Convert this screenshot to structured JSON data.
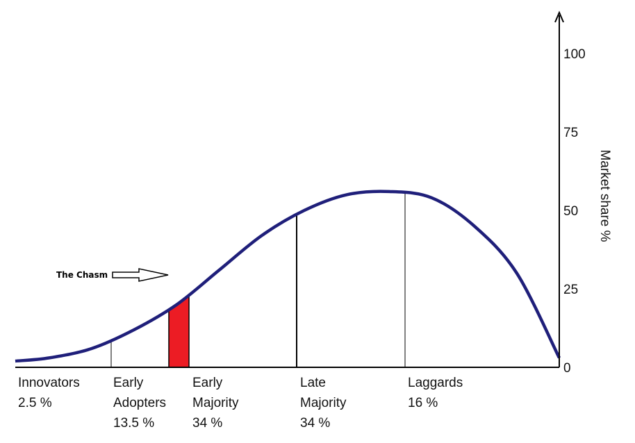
{
  "chart_data": {
    "type": "line",
    "title": "",
    "ylabel": "Market share %",
    "xlabel": "",
    "ylim": [
      0,
      100
    ],
    "yticks": [
      0,
      25,
      50,
      75,
      100
    ],
    "grid": false,
    "curve": {
      "x": [
        -3.4,
        -3.0,
        -2.5,
        -2.0,
        -1.5,
        -1.0,
        -0.5,
        0.0,
        0.5,
        1.0,
        1.5,
        2.0,
        2.5,
        3.0
      ],
      "y": [
        2,
        3,
        6,
        12,
        20,
        31,
        42,
        50,
        55,
        56,
        54,
        45,
        30,
        3
      ]
    },
    "segments": [
      {
        "id": "innovators",
        "lines": [
          "Innovators",
          "2.5 %"
        ]
      },
      {
        "id": "early-adopters",
        "lines": [
          "Early",
          "Adopters",
          "13.5 %"
        ]
      },
      {
        "id": "early-majority",
        "lines": [
          "Early",
          "Majority",
          "34 %"
        ]
      },
      {
        "id": "late-majority",
        "lines": [
          "Late",
          "Majority",
          "34 %"
        ]
      },
      {
        "id": "laggards",
        "lines": [
          "Laggards",
          "16 %"
        ]
      }
    ],
    "annotation": {
      "label": "The Chasm",
      "color": "#ec1c24"
    },
    "colors": {
      "curve": "#1f1f7a",
      "chasm": "#ec1c24",
      "axis": "#000000"
    }
  }
}
